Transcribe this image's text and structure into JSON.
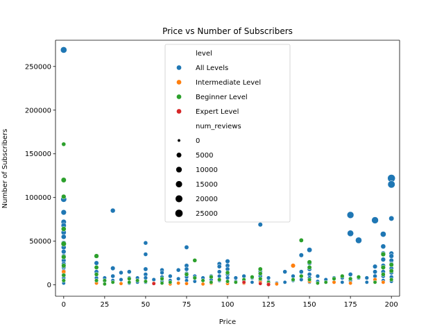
{
  "chart_data": {
    "type": "scatter",
    "title": "Price vs Number of Subscribers",
    "xlabel": "Price",
    "ylabel": "Number of Subscribers",
    "xlim": [
      -5,
      205
    ],
    "ylim": [
      -13000,
      280000
    ],
    "x_ticks": [
      0,
      25,
      50,
      75,
      100,
      125,
      150,
      175,
      200
    ],
    "y_ticks": [
      0,
      50000,
      100000,
      150000,
      200000,
      250000
    ],
    "grid": false,
    "legend": {
      "placement": "top-center",
      "hue_title": "level",
      "size_title": "num_reviews",
      "size_entries": [
        "0",
        "5000",
        "10000",
        "15000",
        "20000",
        "25000"
      ]
    },
    "colors": {
      "All Levels": "#1f77b4",
      "Intermediate Level": "#ff7f0e",
      "Beginner Level": "#2ca02c",
      "Expert Level": "#d62728"
    },
    "series": [
      {
        "name": "All Levels",
        "points": [
          [
            0,
            268923,
            12000
          ],
          [
            0,
            98000,
            9000
          ],
          [
            0,
            83000,
            6000
          ],
          [
            0,
            72000,
            5500
          ],
          [
            0,
            68000,
            5000
          ],
          [
            0,
            60000,
            4500
          ],
          [
            0,
            55000,
            4000
          ],
          [
            0,
            48000,
            3800
          ],
          [
            0,
            43000,
            3500
          ],
          [
            0,
            38000,
            3000
          ],
          [
            0,
            33000,
            2800
          ],
          [
            0,
            28000,
            2500
          ],
          [
            0,
            24000,
            2200
          ],
          [
            0,
            20000,
            2000
          ],
          [
            0,
            16000,
            1500
          ],
          [
            0,
            12000,
            1200
          ],
          [
            0,
            8000,
            1000
          ],
          [
            0,
            5000,
            800
          ],
          [
            0,
            2000,
            500
          ],
          [
            20,
            25000,
            2500
          ],
          [
            20,
            15000,
            2000
          ],
          [
            20,
            8000,
            1000
          ],
          [
            20,
            3000,
            500
          ],
          [
            25,
            8000,
            800
          ],
          [
            25,
            4000,
            500
          ],
          [
            30,
            85000,
            3500
          ],
          [
            30,
            19000,
            2500
          ],
          [
            30,
            10000,
            1500
          ],
          [
            30,
            5000,
            800
          ],
          [
            35,
            14000,
            1500
          ],
          [
            35,
            6000,
            800
          ],
          [
            40,
            15000,
            1500
          ],
          [
            40,
            8000,
            800
          ],
          [
            40,
            2000,
            500
          ],
          [
            45,
            8000,
            800
          ],
          [
            45,
            3000,
            400
          ],
          [
            50,
            48000,
            1500
          ],
          [
            50,
            35000,
            1500
          ],
          [
            50,
            18000,
            2000
          ],
          [
            50,
            12000,
            1500
          ],
          [
            50,
            8000,
            1000
          ],
          [
            50,
            3000,
            500
          ],
          [
            55,
            6000,
            800
          ],
          [
            55,
            2000,
            400
          ],
          [
            60,
            17000,
            1500
          ],
          [
            60,
            14000,
            1200
          ],
          [
            60,
            9000,
            900
          ],
          [
            60,
            4000,
            500
          ],
          [
            65,
            10000,
            1200
          ],
          [
            65,
            5000,
            600
          ],
          [
            70,
            17000,
            1500
          ],
          [
            70,
            7000,
            800
          ],
          [
            70,
            2000,
            400
          ],
          [
            75,
            43000,
            2000
          ],
          [
            75,
            22000,
            2000
          ],
          [
            75,
            18000,
            1800
          ],
          [
            75,
            13000,
            1500
          ],
          [
            75,
            9000,
            1000
          ],
          [
            75,
            5000,
            600
          ],
          [
            80,
            10000,
            1000
          ],
          [
            80,
            4000,
            500
          ],
          [
            85,
            8000,
            900
          ],
          [
            90,
            10000,
            1000
          ],
          [
            90,
            6000,
            700
          ],
          [
            95,
            24000,
            2000
          ],
          [
            95,
            21000,
            1800
          ],
          [
            95,
            15000,
            1500
          ],
          [
            95,
            10000,
            1000
          ],
          [
            95,
            5000,
            600
          ],
          [
            100,
            27000,
            2500
          ],
          [
            100,
            22000,
            2000
          ],
          [
            100,
            18000,
            1800
          ],
          [
            100,
            12000,
            1500
          ],
          [
            100,
            8000,
            1000
          ],
          [
            100,
            3000,
            400
          ],
          [
            105,
            8000,
            900
          ],
          [
            105,
            4000,
            500
          ],
          [
            110,
            10000,
            1200
          ],
          [
            110,
            5000,
            600
          ],
          [
            115,
            8000,
            900
          ],
          [
            115,
            3000,
            400
          ],
          [
            120,
            69000,
            2500
          ],
          [
            120,
            15000,
            1800
          ],
          [
            120,
            10000,
            1500
          ],
          [
            120,
            5000,
            800
          ],
          [
            125,
            8000,
            900
          ],
          [
            125,
            4000,
            500
          ],
          [
            130,
            2000,
            500
          ],
          [
            135,
            15000,
            1500
          ],
          [
            135,
            3000,
            500
          ],
          [
            140,
            10000,
            1200
          ],
          [
            140,
            5000,
            700
          ],
          [
            145,
            34000,
            2500
          ],
          [
            145,
            15000,
            1800
          ],
          [
            145,
            6000,
            800
          ],
          [
            150,
            40000,
            4500
          ],
          [
            150,
            25000,
            3000
          ],
          [
            150,
            18000,
            2200
          ],
          [
            150,
            12000,
            1800
          ],
          [
            150,
            8000,
            1200
          ],
          [
            150,
            3000,
            500
          ],
          [
            155,
            10000,
            1200
          ],
          [
            155,
            4000,
            600
          ],
          [
            160,
            6000,
            800
          ],
          [
            165,
            8000,
            900
          ],
          [
            170,
            8000,
            900
          ],
          [
            170,
            3000,
            500
          ],
          [
            175,
            80000,
            16000
          ],
          [
            175,
            59000,
            12000
          ],
          [
            175,
            12000,
            1800
          ],
          [
            175,
            5000,
            800
          ],
          [
            180,
            51000,
            12000
          ],
          [
            180,
            8000,
            1000
          ],
          [
            185,
            8000,
            1000
          ],
          [
            185,
            3000,
            500
          ],
          [
            190,
            74000,
            16000
          ],
          [
            190,
            21000,
            2500
          ],
          [
            190,
            15000,
            2000
          ],
          [
            190,
            10000,
            1500
          ],
          [
            190,
            5000,
            800
          ],
          [
            195,
            58000,
            8000
          ],
          [
            195,
            44000,
            4000
          ],
          [
            195,
            36000,
            3500
          ],
          [
            195,
            29000,
            3000
          ],
          [
            195,
            22000,
            2500
          ],
          [
            195,
            15000,
            2000
          ],
          [
            195,
            10000,
            1500
          ],
          [
            195,
            5000,
            800
          ],
          [
            200,
            122000,
            24000
          ],
          [
            200,
            115000,
            20000
          ],
          [
            200,
            76000,
            5000
          ],
          [
            200,
            36000,
            3000
          ],
          [
            200,
            33000,
            3000
          ],
          [
            200,
            28000,
            2500
          ],
          [
            200,
            24000,
            2200
          ],
          [
            200,
            19000,
            2000
          ],
          [
            200,
            14000,
            1800
          ],
          [
            200,
            9000,
            1200
          ],
          [
            200,
            4000,
            600
          ]
        ]
      },
      {
        "name": "Intermediate Level",
        "points": [
          [
            0,
            15000,
            1500
          ],
          [
            20,
            2000,
            500
          ],
          [
            25,
            1000,
            400
          ],
          [
            35,
            1500,
            400
          ],
          [
            55,
            2000,
            500
          ],
          [
            65,
            1000,
            400
          ],
          [
            70,
            2000,
            500
          ],
          [
            75,
            1500,
            400
          ],
          [
            85,
            1000,
            400
          ],
          [
            90,
            2000,
            500
          ],
          [
            100,
            1500,
            400
          ],
          [
            110,
            2000,
            500
          ],
          [
            120,
            3000,
            600
          ],
          [
            130,
            1000,
            400
          ],
          [
            140,
            22000,
            2500
          ],
          [
            150,
            4000,
            700
          ],
          [
            165,
            3000,
            600
          ],
          [
            175,
            2000,
            500
          ],
          [
            190,
            6000,
            900
          ],
          [
            195,
            3000,
            500
          ]
        ]
      },
      {
        "name": "Beginner Level",
        "points": [
          [
            0,
            161000,
            1500
          ],
          [
            0,
            120000,
            5000
          ],
          [
            0,
            101000,
            3000
          ],
          [
            0,
            64000,
            4000
          ],
          [
            0,
            47000,
            5500
          ],
          [
            0,
            32000,
            3000
          ],
          [
            0,
            22000,
            2500
          ],
          [
            0,
            11000,
            1500
          ],
          [
            0,
            5000,
            800
          ],
          [
            20,
            33000,
            3000
          ],
          [
            20,
            20000,
            2000
          ],
          [
            20,
            12000,
            1500
          ],
          [
            20,
            5000,
            800
          ],
          [
            25,
            5000,
            800
          ],
          [
            25,
            1000,
            400
          ],
          [
            30,
            3000,
            500
          ],
          [
            40,
            7000,
            900
          ],
          [
            40,
            3000,
            500
          ],
          [
            45,
            5000,
            700
          ],
          [
            50,
            4000,
            600
          ],
          [
            60,
            7000,
            900
          ],
          [
            60,
            2000,
            400
          ],
          [
            65,
            3000,
            500
          ],
          [
            75,
            12000,
            1500
          ],
          [
            80,
            28000,
            1500
          ],
          [
            80,
            8000,
            900
          ],
          [
            85,
            5000,
            700
          ],
          [
            90,
            9000,
            1000
          ],
          [
            90,
            3000,
            500
          ],
          [
            95,
            6000,
            800
          ],
          [
            100,
            14000,
            1500
          ],
          [
            100,
            4000,
            600
          ],
          [
            105,
            3000,
            500
          ],
          [
            110,
            6000,
            800
          ],
          [
            115,
            9000,
            1000
          ],
          [
            120,
            18000,
            2000
          ],
          [
            120,
            13000,
            1500
          ],
          [
            120,
            7000,
            900
          ],
          [
            125,
            3000,
            500
          ],
          [
            140,
            6000,
            800
          ],
          [
            145,
            51000,
            2000
          ],
          [
            145,
            10000,
            1200
          ],
          [
            150,
            26000,
            2500
          ],
          [
            150,
            20000,
            2000
          ],
          [
            150,
            6000,
            800
          ],
          [
            155,
            2000,
            400
          ],
          [
            160,
            3000,
            500
          ],
          [
            165,
            7000,
            900
          ],
          [
            170,
            10000,
            1200
          ],
          [
            175,
            7000,
            900
          ],
          [
            180,
            9000,
            1000
          ],
          [
            190,
            3000,
            500
          ],
          [
            195,
            35000,
            3000
          ],
          [
            195,
            20000,
            2500
          ],
          [
            195,
            12000,
            1500
          ],
          [
            200,
            23000,
            2500
          ],
          [
            200,
            16000,
            2000
          ],
          [
            200,
            6000,
            800
          ]
        ]
      },
      {
        "name": "Expert Level",
        "points": [
          [
            55,
            1500,
            500
          ],
          [
            110,
            3000,
            500
          ],
          [
            120,
            1500,
            400
          ],
          [
            125,
            500,
            900
          ]
        ]
      }
    ]
  }
}
